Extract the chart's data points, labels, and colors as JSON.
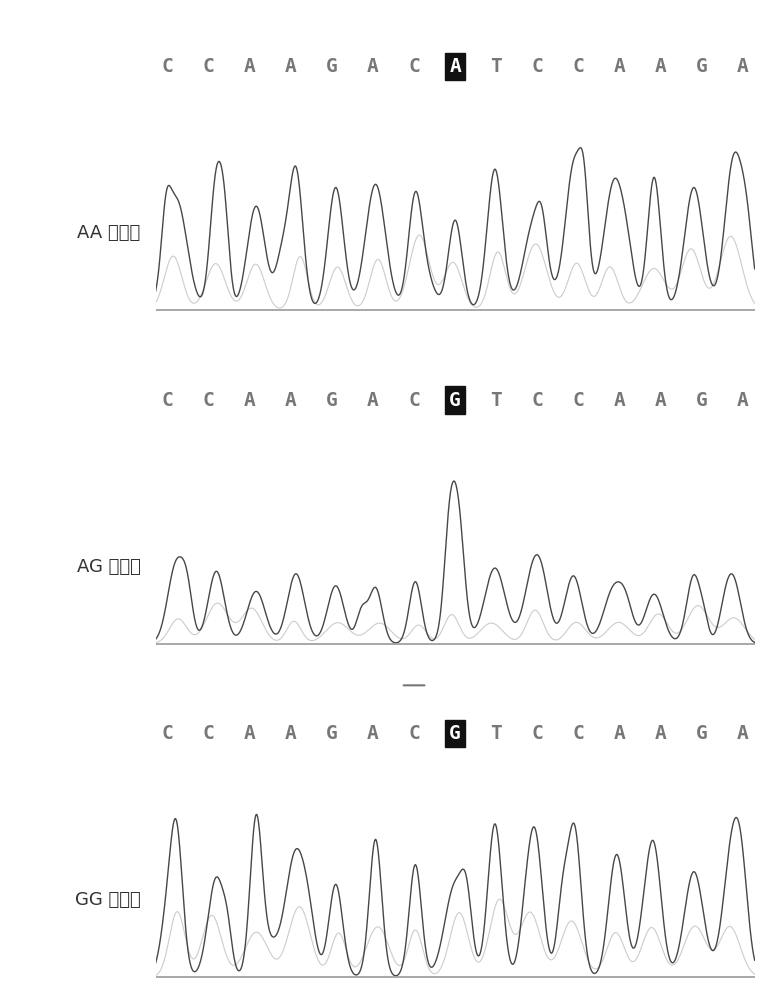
{
  "panels": [
    {
      "label": "AA 基因型",
      "sequence": [
        "C",
        "C",
        "A",
        "A",
        "G",
        "A",
        "C",
        "A",
        "T",
        "C",
        "C",
        "A",
        "A",
        "G",
        "A"
      ],
      "highlight_idx": 7,
      "highlight_char": "A",
      "has_overline": false
    },
    {
      "label": "AG 基因型",
      "sequence": [
        "C",
        "C",
        "A",
        "A",
        "G",
        "A",
        "C",
        "G",
        "T",
        "C",
        "C",
        "A",
        "A",
        "G",
        "A"
      ],
      "highlight_idx": 7,
      "highlight_char": "G",
      "has_overline": false
    },
    {
      "label": "GG 基因型",
      "sequence": [
        "C",
        "C",
        "A",
        "A",
        "G",
        "A",
        "C",
        "G",
        "T",
        "C",
        "C",
        "A",
        "A",
        "G",
        "A"
      ],
      "highlight_idx": 7,
      "highlight_char": "G",
      "has_overline": true
    }
  ],
  "bg_color": "#ffffff",
  "line_color_dark": "#333333",
  "line_color_light": "#aaaaaa",
  "seq_color": "#777777",
  "highlight_bg": "#111111",
  "highlight_fg": "#ffffff",
  "label_color": "#333333",
  "peak_seeds": [
    42,
    142,
    242
  ],
  "n_peaks": 15,
  "seq_fontsize": 14,
  "label_fontsize": 13
}
